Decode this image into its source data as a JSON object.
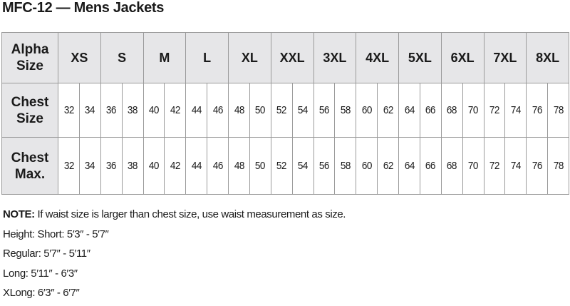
{
  "title": "MFC-12 — Mens Jackets",
  "table": {
    "row_headers": [
      "Alpha Size",
      "Chest Size",
      "Chest Max."
    ],
    "alpha_sizes": [
      "XS",
      "S",
      "M",
      "L",
      "XL",
      "XXL",
      "3XL",
      "4XL",
      "5XL",
      "6XL",
      "7XL",
      "8XL"
    ],
    "chest_size": [
      32,
      34,
      36,
      38,
      40,
      42,
      44,
      46,
      48,
      50,
      52,
      54,
      56,
      58,
      60,
      62,
      64,
      66,
      68,
      70,
      72,
      74,
      76,
      78
    ],
    "chest_max": [
      32,
      34,
      36,
      38,
      40,
      42,
      44,
      46,
      48,
      50,
      52,
      54,
      56,
      58,
      60,
      62,
      64,
      66,
      68,
      70,
      72,
      74,
      76,
      78
    ],
    "header_bg": "#e6e6e8"
  },
  "notes": {
    "note_label": "NOTE:",
    "note_text": " If waist size is larger than chest size, use waist measurement as size.",
    "lines": [
      "Height: Short: 5′3″ - 5′7″",
      "Regular: 5′7″ - 5′11″",
      "Long: 5′11″ - 6′3″",
      "XLong: 6′3″ - 6′7″"
    ]
  }
}
